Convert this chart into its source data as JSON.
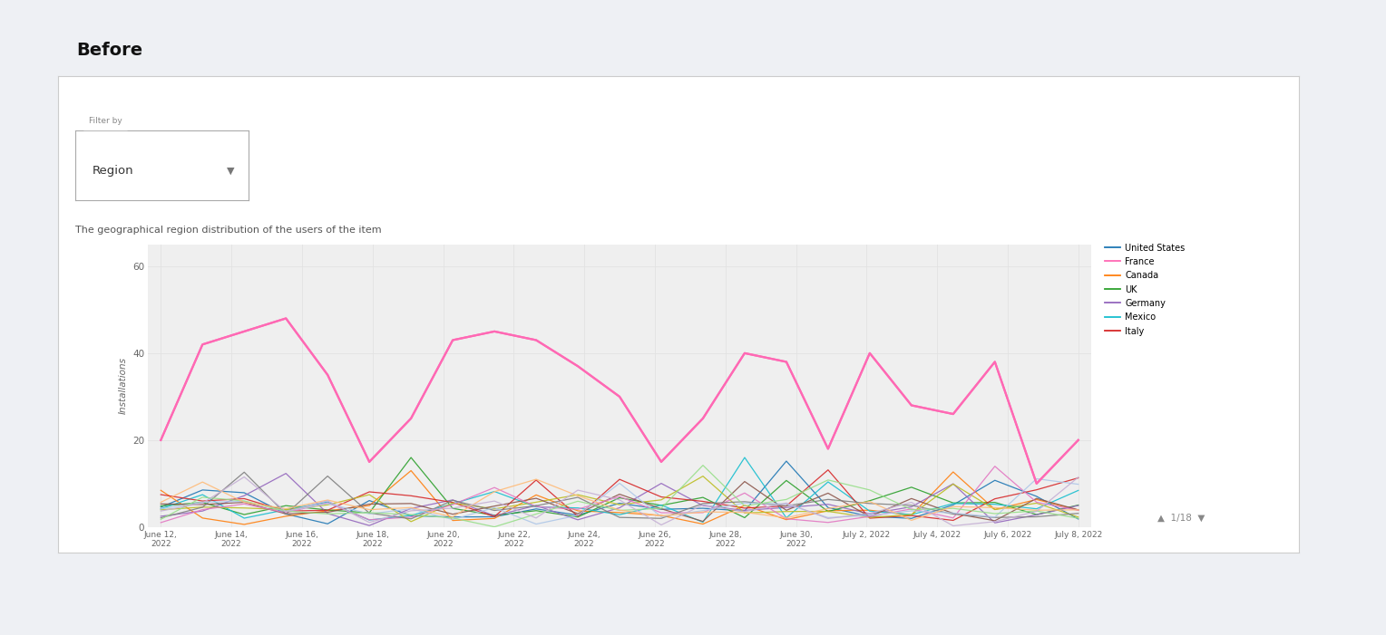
{
  "title": "Before",
  "subtitle": "The geographical region distribution of the users of the item",
  "filter_label": "Filter by",
  "filter_value": "Region",
  "ylabel": "Installations",
  "ylim": [
    0,
    65
  ],
  "yticks": [
    0,
    20,
    40,
    60
  ],
  "x_labels": [
    "June 12,\n2022",
    "June 14,\n2022",
    "June 16,\n2022",
    "June 18,\n2022",
    "June 20,\n2022",
    "June 22,\n2022",
    "June 24,\n2022",
    "June 26,\n2022",
    "June 28,\n2022",
    "June 30,\n2022",
    "July 2, 2022",
    "July 4, 2022",
    "July 6, 2022",
    "July 8, 2022"
  ],
  "legend_entries": [
    {
      "label": "United States",
      "color": "#1f77b4"
    },
    {
      "label": "France",
      "color": "#ff69b4"
    },
    {
      "label": "Canada",
      "color": "#ff7f0e"
    },
    {
      "label": "UK",
      "color": "#2ca02c"
    },
    {
      "label": "Germany",
      "color": "#9467bd"
    },
    {
      "label": "Mexico",
      "color": "#17becf"
    },
    {
      "label": "Italy",
      "color": "#d62728"
    }
  ],
  "france_values": [
    20,
    42,
    45,
    48,
    35,
    15,
    25,
    43,
    45,
    43,
    37,
    30,
    15,
    25,
    40,
    38,
    18,
    40,
    28,
    26,
    38,
    10,
    20
  ],
  "other_colors": [
    "#1f77b4",
    "#ff7f0e",
    "#2ca02c",
    "#9467bd",
    "#17becf",
    "#d62728",
    "#bcbd22",
    "#8c564b",
    "#e377c2",
    "#7f7f7f",
    "#aec7e8",
    "#98df8a",
    "#ffbb78",
    "#c5b0d5"
  ],
  "page_label": "1/18",
  "outer_bg": "#eef0f4",
  "card_bg": "#ffffff",
  "chart_bg": "#efefef",
  "grid_color": "#e2e2e2"
}
